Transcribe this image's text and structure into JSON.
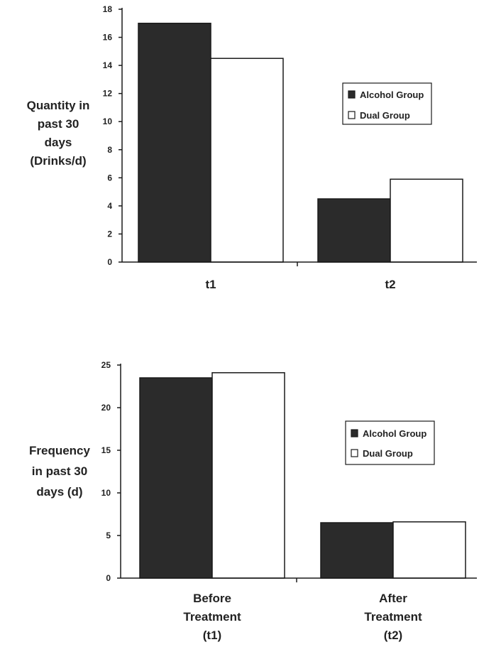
{
  "colors": {
    "alcohol": "#2b2b2b",
    "dual": "#ffffff",
    "stroke": "#1a1a1a",
    "text": "#222222"
  },
  "chart_data": [
    {
      "type": "bar",
      "ylabel": [
        "Quantity in",
        "past 30",
        "days",
        "(Drinks/d)"
      ],
      "xlabel": "",
      "categories": [
        [
          "t1"
        ],
        [
          "t2"
        ]
      ],
      "ylim": [
        0,
        18
      ],
      "yticks": [
        0,
        2,
        4,
        6,
        8,
        10,
        12,
        14,
        16,
        18
      ],
      "grid": false,
      "legend_position": "right",
      "series": [
        {
          "name": "Alcohol Group",
          "values": [
            17.0,
            4.5
          ],
          "color": "#2b2b2b"
        },
        {
          "name": "Dual Group",
          "values": [
            14.5,
            5.9
          ],
          "color": "#ffffff"
        }
      ]
    },
    {
      "type": "bar",
      "ylabel": [
        "Frequency",
        "in past 30",
        "days (d)"
      ],
      "xlabel": "",
      "categories": [
        [
          "Before",
          "Treatment",
          "(t1)"
        ],
        [
          "After",
          "Treatment",
          "(t2)"
        ]
      ],
      "ylim": [
        0,
        25
      ],
      "yticks": [
        0,
        5,
        10,
        15,
        20,
        25
      ],
      "grid": false,
      "legend_position": "right",
      "series": [
        {
          "name": "Alcohol Group",
          "values": [
            23.5,
            6.5
          ],
          "color": "#2b2b2b"
        },
        {
          "name": "Dual Group",
          "values": [
            24.1,
            6.6
          ],
          "color": "#ffffff"
        }
      ]
    }
  ]
}
